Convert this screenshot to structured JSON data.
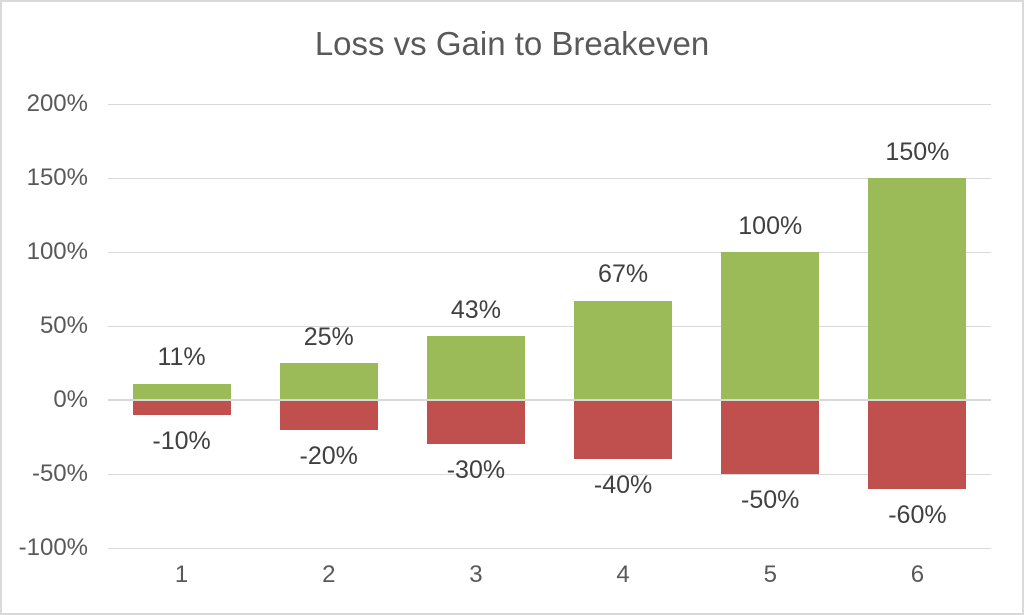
{
  "frame": {
    "background": "#FFFFFF",
    "border_color": "#D9D9D9"
  },
  "chart_data": {
    "type": "bar",
    "subtype": "diverging-stacked-column",
    "title": "Loss vs Gain to Breakeven",
    "title_color": "#595959",
    "categories": [
      "1",
      "2",
      "3",
      "4",
      "5",
      "6"
    ],
    "series": [
      {
        "id": "gain",
        "color": "#9BBB59",
        "values": [
          11,
          25,
          43,
          67,
          100,
          150
        ],
        "labels": [
          "11%",
          "25%",
          "43%",
          "67%",
          "100%",
          "150%"
        ]
      },
      {
        "id": "loss",
        "color": "#C0504D",
        "values": [
          -10,
          -20,
          -30,
          -40,
          -50,
          -60
        ],
        "labels": [
          "-10%",
          "-20%",
          "-30%",
          "-40%",
          "-50%",
          "-60%"
        ]
      }
    ],
    "data_label_color": "#404040",
    "ylim": [
      -100,
      200
    ],
    "yticks": [
      {
        "value": 200,
        "label": "200%"
      },
      {
        "value": 150,
        "label": "150%"
      },
      {
        "value": 100,
        "label": "100%"
      },
      {
        "value": 50,
        "label": "50%"
      },
      {
        "value": 0,
        "label": "0%"
      },
      {
        "value": -50,
        "label": "-50%"
      },
      {
        "value": -100,
        "label": "-100%"
      }
    ],
    "axis_text_color": "#595959",
    "gridline_color": "#D9D9D9",
    "grid": true,
    "legend": "none",
    "xlabel": "",
    "ylabel": ""
  }
}
